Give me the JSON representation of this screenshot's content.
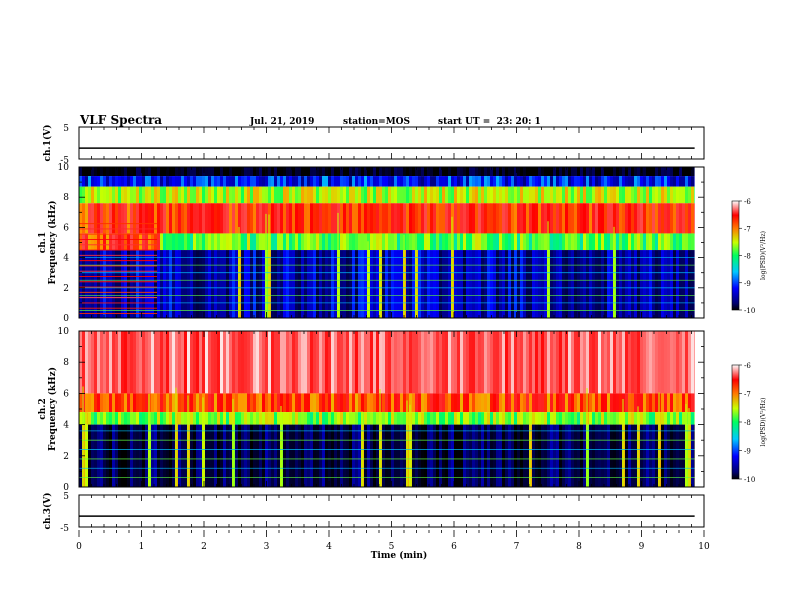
{
  "header": {
    "title": "VLF Spectra",
    "date": "Jul. 21, 2019",
    "station": "station=MOS",
    "start": "start UT =  23: 20: 1"
  },
  "colorbar": {
    "label": "log(PSD)(V²/Hz)",
    "ticks": [
      "-6",
      "-7",
      "-8",
      "-9",
      "-10"
    ]
  },
  "chart_data": [
    {
      "type": "line",
      "panel": "ch1-voltage",
      "ylabel": "ch.1(V)",
      "ylim": [
        -5,
        5
      ],
      "yticks": [
        "5",
        "-5"
      ],
      "x": [
        0,
        10
      ],
      "series": [
        {
          "values": [
            -1.6,
            -1.6
          ]
        }
      ]
    },
    {
      "type": "heatmap",
      "panel": "ch1-spectrogram",
      "ylabel": "ch.1\nFrequency (kHz)",
      "ylim": [
        0,
        10
      ],
      "yticks": [
        "10",
        "8",
        "6",
        "4",
        "2",
        "0"
      ],
      "xlim": [
        0,
        10
      ],
      "zlim": [
        -10,
        -6
      ],
      "zlabel": "log(PSD)(V²/Hz)",
      "bands": [
        {
          "from_khz": 9.4,
          "to_khz": 10.0,
          "level": -10.5
        },
        {
          "from_khz": 8.7,
          "to_khz": 9.4,
          "level": -9.5
        },
        {
          "from_khz": 7.6,
          "to_khz": 8.7,
          "level": -8.0
        },
        {
          "from_khz": 5.6,
          "to_khz": 7.6,
          "level": -7.0
        },
        {
          "from_khz": 4.5,
          "to_khz": 5.6,
          "level": -8.3
        },
        {
          "from_khz": 0.0,
          "to_khz": 4.5,
          "level": -9.8
        }
      ],
      "early_segment_end_min": 1.25,
      "tone_lines_khz": [
        0.5,
        1.0,
        1.5,
        2.0,
        2.5,
        3.0,
        3.5,
        4.0
      ]
    },
    {
      "type": "heatmap",
      "panel": "ch2-spectrogram",
      "ylabel": "ch.2\nFrequency (kHz)",
      "ylim": [
        0,
        10
      ],
      "yticks": [
        "10",
        "8",
        "6",
        "4",
        "2",
        "0"
      ],
      "xlim": [
        0,
        10
      ],
      "zlim": [
        -10,
        -6
      ],
      "bands": [
        {
          "from_khz": 6.0,
          "to_khz": 10.0,
          "level": -6.5
        },
        {
          "from_khz": 4.8,
          "to_khz": 6.0,
          "level": -7.2
        },
        {
          "from_khz": 4.0,
          "to_khz": 4.8,
          "level": -8.2
        },
        {
          "from_khz": 0.0,
          "to_khz": 4.0,
          "level": -10.2
        }
      ],
      "tone_lines_khz": [
        0.6,
        1.2,
        1.8,
        2.4,
        3.0,
        3.6
      ]
    },
    {
      "type": "line",
      "panel": "ch3-voltage",
      "ylabel": "ch.3(V)",
      "ylim": [
        -5,
        5
      ],
      "yticks": [
        "5",
        "-5"
      ],
      "x": [
        0,
        10
      ],
      "series": [
        {
          "values": [
            -1.6,
            -1.6
          ]
        }
      ]
    }
  ],
  "xaxis": {
    "label": "Time (min)",
    "ticks": [
      "0",
      "1",
      "2",
      "3",
      "4",
      "5",
      "6",
      "7",
      "8",
      "9",
      "10"
    ],
    "range": [
      0,
      10
    ]
  },
  "plot_end_min": 9.85
}
